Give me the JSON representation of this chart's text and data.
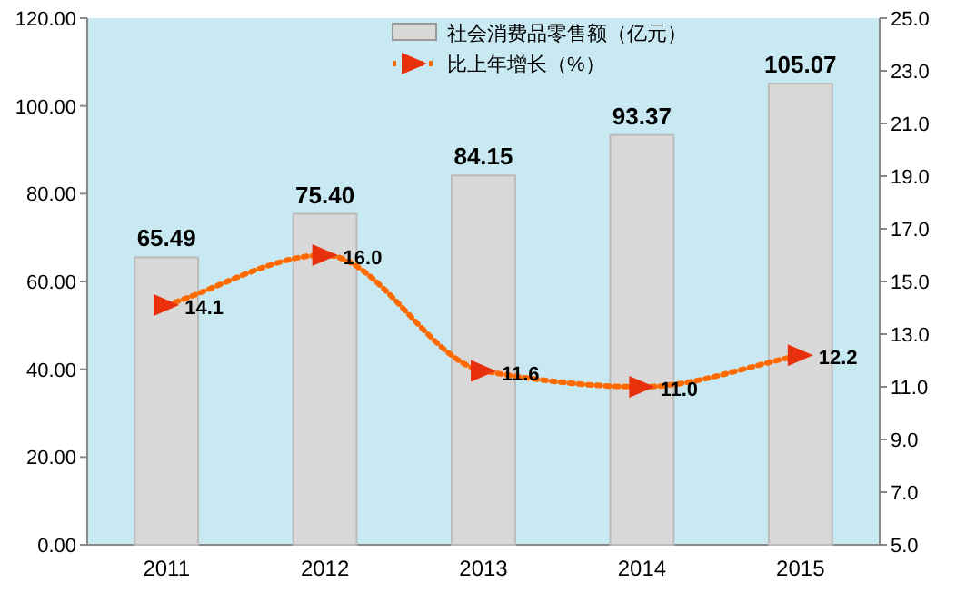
{
  "chart_data": {
    "type": "bar",
    "categories": [
      "2011",
      "2012",
      "2013",
      "2014",
      "2015"
    ],
    "series": [
      {
        "name": "社会消费品零售额（亿元）",
        "color": "#d8d8d8",
        "values": [
          65.49,
          75.4,
          84.15,
          93.37,
          105.07
        ],
        "value_labels": [
          "65.49",
          "75.40",
          "84.15",
          "93.37",
          "105.07"
        ]
      },
      {
        "name": "比上年增长（%）",
        "type": "line",
        "axis": "y2",
        "color": "#ff6a00",
        "values": [
          14.1,
          16.0,
          11.6,
          11.0,
          12.2
        ],
        "value_labels": [
          "14.1",
          "16.0",
          "11.6",
          "11.0",
          "12.2"
        ]
      }
    ],
    "marker": "triangle",
    "line_style": "dotted",
    "legend": "top",
    "ylim": [
      0,
      120
    ],
    "yticks": [
      {
        "value": 0,
        "label": "0.00"
      },
      {
        "value": 20,
        "label": "20.00"
      },
      {
        "value": 40,
        "label": "40.00"
      },
      {
        "value": 60,
        "label": "60.00"
      },
      {
        "value": 80,
        "label": "80.00"
      },
      {
        "value": 100,
        "label": "100.00"
      },
      {
        "value": 120,
        "label": "120.00"
      }
    ],
    "y2lim": [
      5,
      25
    ],
    "y2ticks": [
      {
        "value": 5,
        "label": "5.0"
      },
      {
        "value": 7,
        "label": "7.0"
      },
      {
        "value": 9,
        "label": "9.0"
      },
      {
        "value": 11,
        "label": "11.0"
      },
      {
        "value": 13,
        "label": "13.0"
      },
      {
        "value": 15,
        "label": "15.0"
      },
      {
        "value": 17,
        "label": "17.0"
      },
      {
        "value": 19,
        "label": "19.0"
      },
      {
        "value": 21,
        "label": "21.0"
      },
      {
        "value": 23,
        "label": "23.0"
      },
      {
        "value": 25,
        "label": "25.0"
      }
    ]
  }
}
